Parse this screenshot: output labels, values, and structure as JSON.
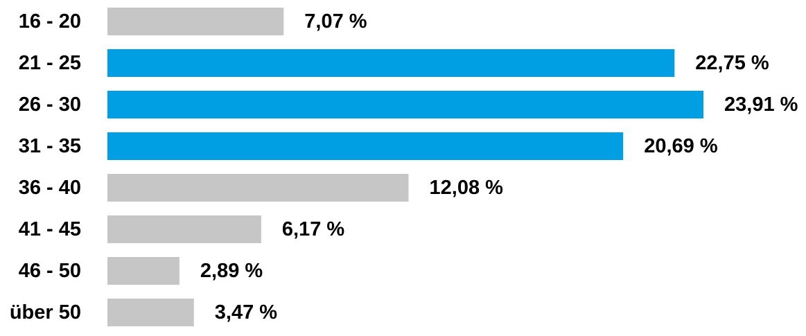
{
  "colors": {
    "highlight": "#009fe3",
    "default": "#c6c6c6",
    "text": "#000000"
  },
  "chart_data": {
    "type": "bar",
    "orientation": "horizontal",
    "categories": [
      "16 - 20",
      "21 - 25",
      "26 - 30",
      "31 - 35",
      "36 - 40",
      "41 - 45",
      "46 - 50",
      "über 50"
    ],
    "values": [
      7.07,
      22.75,
      23.91,
      20.69,
      12.08,
      6.17,
      2.89,
      3.47
    ],
    "value_labels": [
      "7,07 %",
      "22,75 %",
      "23,91 %",
      "20,69 %",
      "12,08 %",
      "6,17 %",
      "2,89 %",
      "3,47 %"
    ],
    "highlighted": [
      false,
      true,
      true,
      true,
      false,
      false,
      false,
      false
    ],
    "xlim": [
      0,
      23.91
    ],
    "grid": false,
    "legend": "none"
  }
}
